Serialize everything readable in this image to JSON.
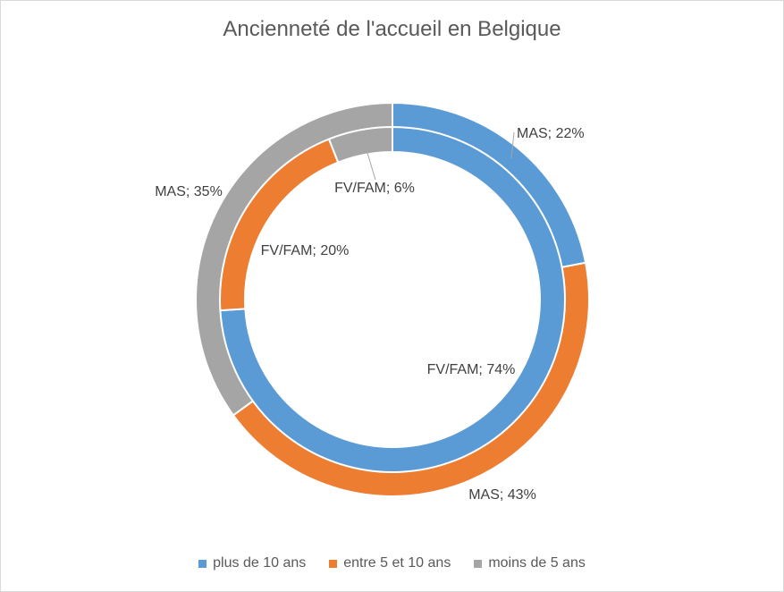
{
  "chart_data": {
    "type": "donut",
    "title": "Ancienneté de l'accueil en Belgique",
    "categories": [
      "plus de 10 ans",
      "entre 5 et 10 ans",
      "moins de 5 ans"
    ],
    "colors": [
      "#5b9bd5",
      "#ed7d31",
      "#a5a5a5"
    ],
    "rings": [
      {
        "ring": "outer",
        "series": "MAS",
        "values": [
          22,
          43,
          35
        ],
        "labels": [
          "MAS; 22%",
          "MAS; 43%",
          "MAS; 35%"
        ]
      },
      {
        "ring": "inner",
        "series": "FV/FAM",
        "values": [
          74,
          20,
          6
        ],
        "labels": [
          "FV/FAM; 74%",
          "FV/FAM; 20%",
          "FV/FAM; 6%"
        ]
      }
    ],
    "legend_position": "bottom"
  }
}
